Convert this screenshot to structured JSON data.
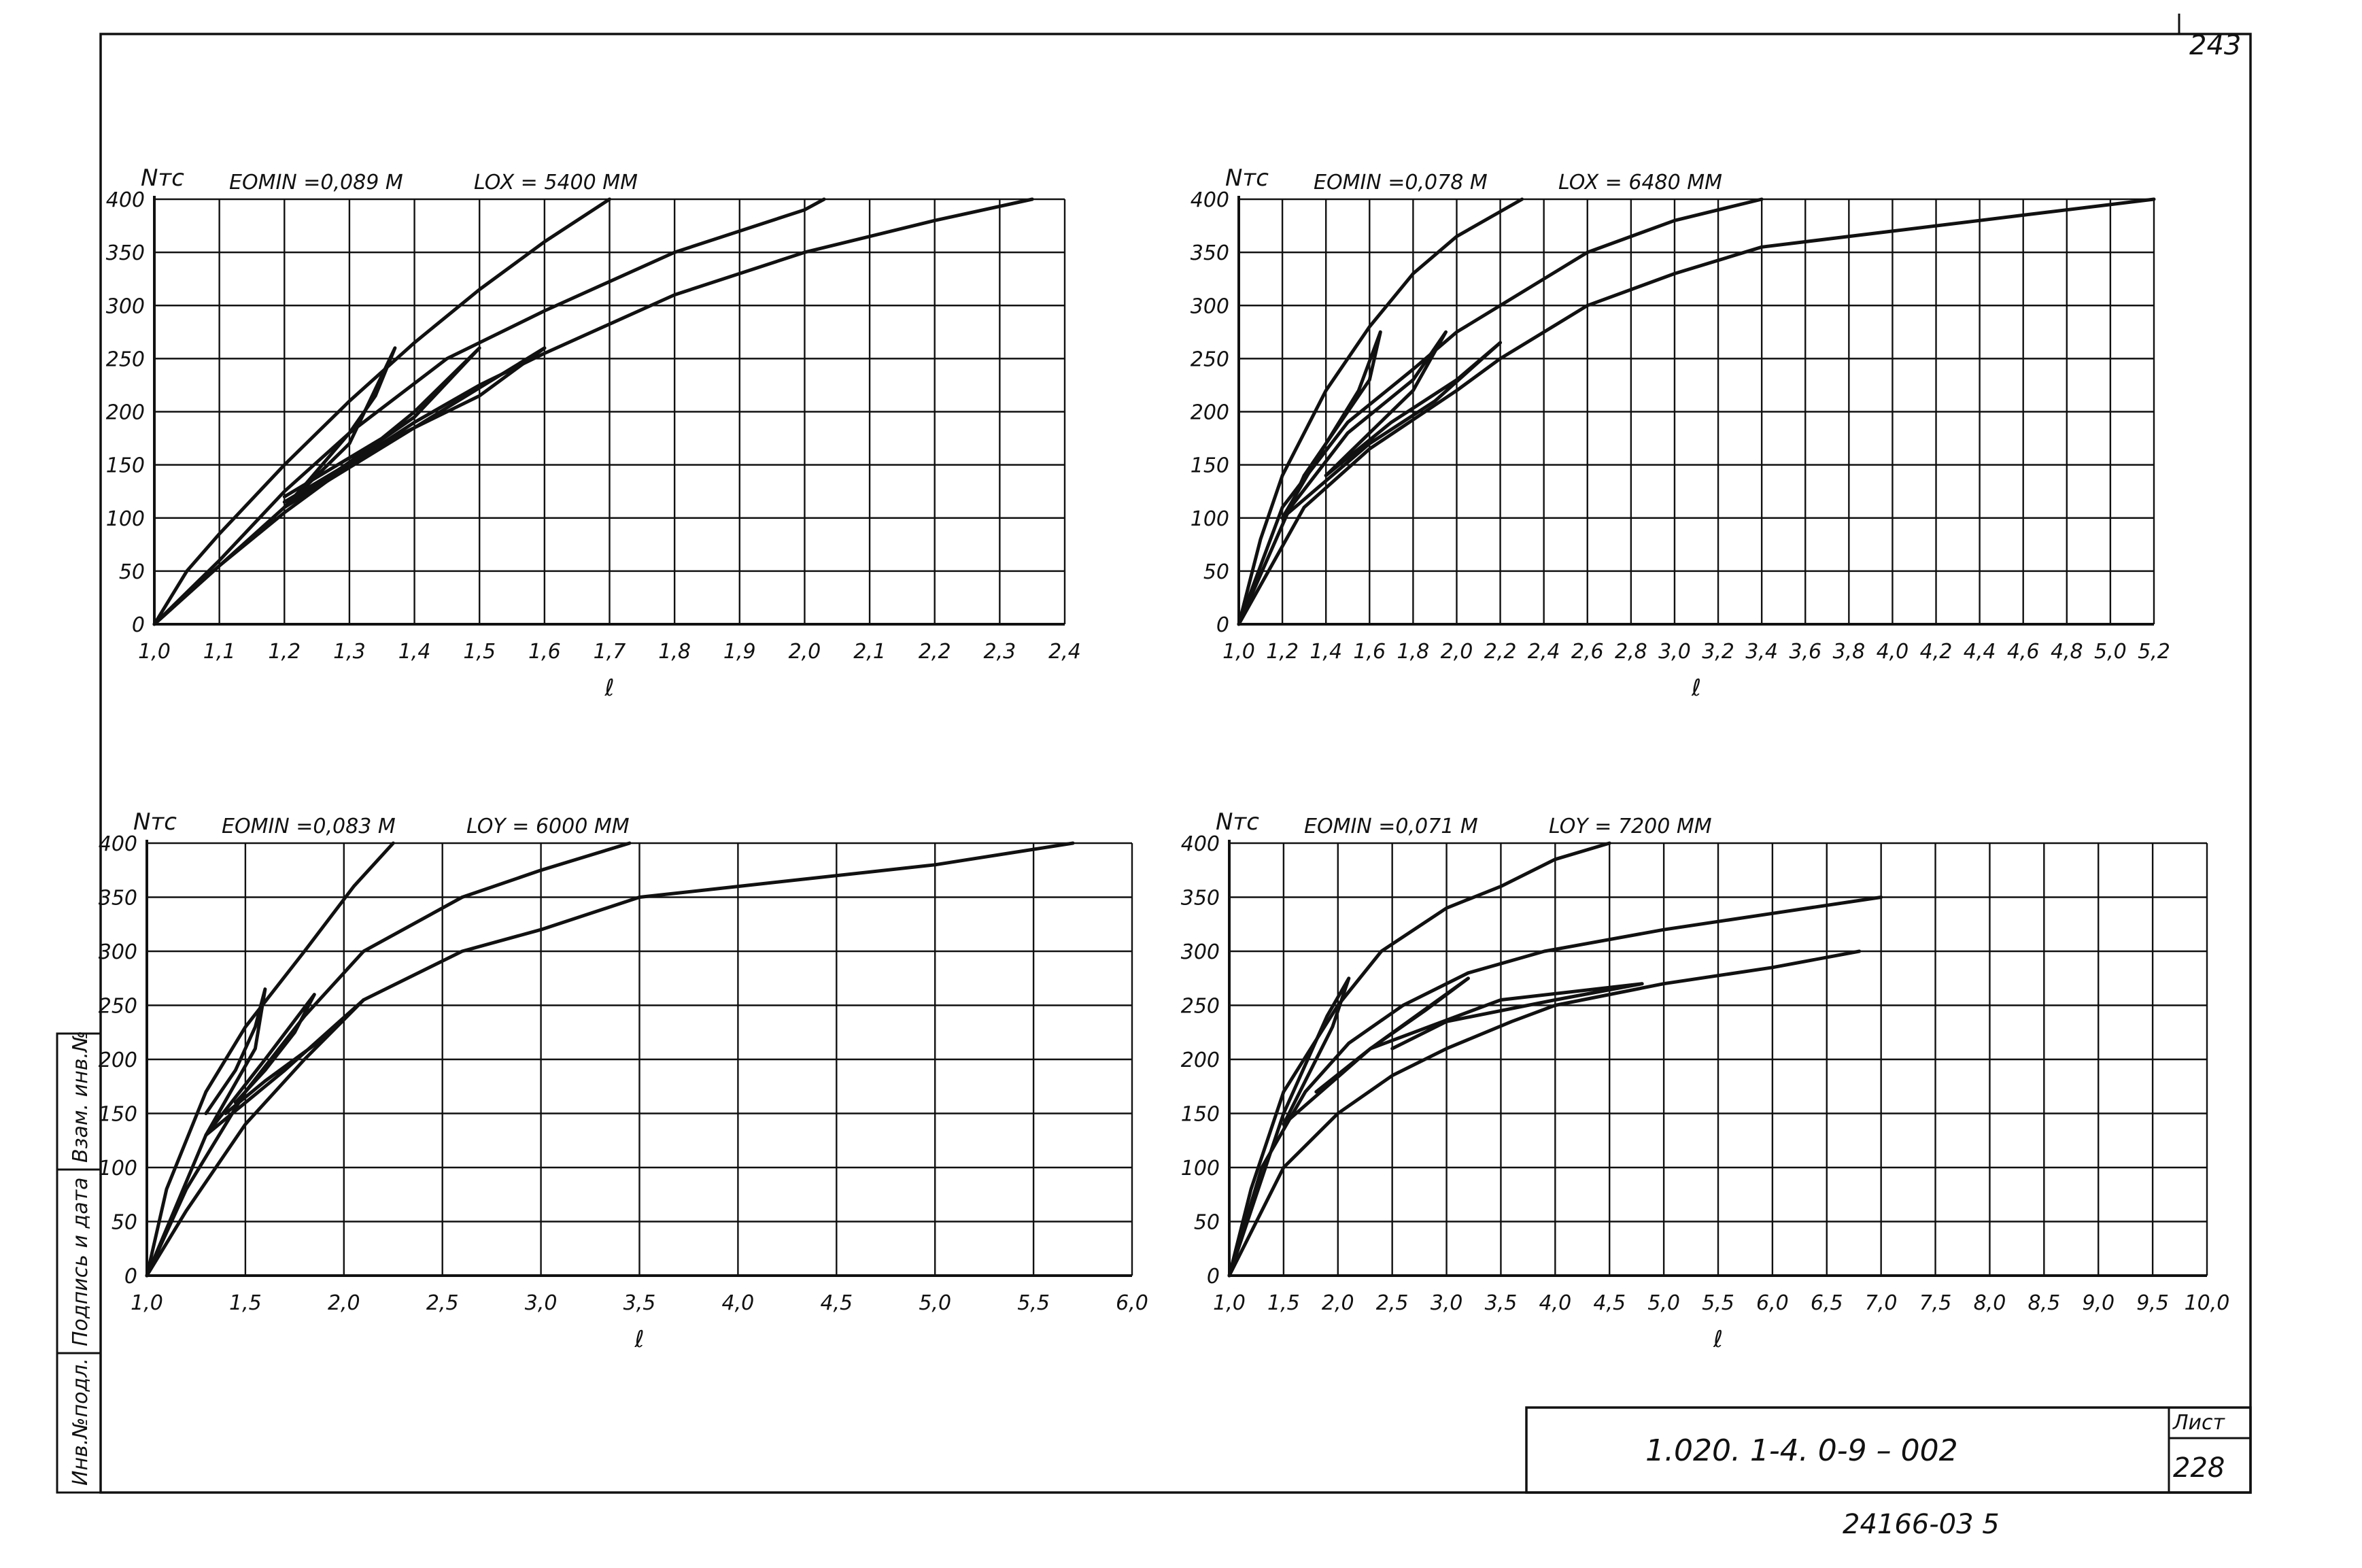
{
  "sheet_corner_number": "243",
  "title_block": {
    "code": "1.020. 1-4.     0-9  –  002",
    "sheet_label": "Лист",
    "sheet_number": "228"
  },
  "bottom_number": "24166-03   5",
  "side_stamp": {
    "col1": "Инв.№подл.",
    "col2": "Подпись и дата",
    "col3": "Взам. инв.№"
  },
  "chart_data": [
    {
      "type": "line",
      "ylabel": "Nтс",
      "xlabel": "ℓ",
      "header_left": "EOMIN =0,089 M",
      "header_right": "LOX = 5400 MM",
      "xlim": [
        1.0,
        2.4
      ],
      "ylim": [
        0,
        400
      ],
      "x_ticks": [
        1.0,
        1.1,
        1.2,
        1.3,
        1.4,
        1.5,
        1.6,
        1.7,
        1.8,
        1.9,
        2.0,
        2.1,
        2.2,
        2.3,
        2.4
      ],
      "x_tick_labels": [
        "1,0",
        "1,1",
        "1,2",
        "1,3",
        "1,4",
        "1,5",
        "1,6",
        "1,7",
        "1,8",
        "1,9",
        "2,0",
        "2,1",
        "2,2",
        "2,3",
        "2,4"
      ],
      "y_ticks": [
        0,
        50,
        100,
        150,
        200,
        250,
        300,
        350,
        400
      ],
      "y_tick_labels": [
        "0",
        "50",
        "100",
        "150",
        "200",
        "250",
        "300",
        "350",
        "400"
      ],
      "series": [
        {
          "values": [
            [
              1.0,
              0
            ],
            [
              1.05,
              50
            ],
            [
              1.1,
              85
            ],
            [
              1.2,
              150
            ],
            [
              1.3,
              210
            ],
            [
              1.4,
              265
            ],
            [
              1.5,
              315
            ],
            [
              1.6,
              360
            ],
            [
              1.7,
              400
            ]
          ]
        },
        {
          "values": [
            [
              1.0,
              0
            ],
            [
              1.1,
              60
            ],
            [
              1.2,
              125
            ],
            [
              1.3,
              180
            ],
            [
              1.45,
              250
            ],
            [
              1.6,
              295
            ],
            [
              1.8,
              350
            ],
            [
              2.0,
              390
            ],
            [
              2.03,
              400
            ]
          ]
        },
        {
          "values": [
            [
              1.0,
              0
            ],
            [
              1.1,
              55
            ],
            [
              1.2,
              105
            ],
            [
              1.3,
              150
            ],
            [
              1.4,
              190
            ],
            [
              1.5,
              225
            ],
            [
              1.6,
              255
            ],
            [
              1.8,
              310
            ],
            [
              2.0,
              350
            ],
            [
              2.2,
              380
            ],
            [
              2.35,
              400
            ]
          ]
        },
        {
          "values": [
            [
              1.0,
              0
            ],
            [
              1.2,
              110
            ],
            [
              1.3,
              170
            ],
            [
              1.37,
              260
            ],
            [
              1.34,
              215
            ],
            [
              1.3,
              180
            ],
            [
              1.23,
              130
            ],
            [
              1.2,
              110
            ]
          ]
        },
        {
          "values": [
            [
              1.2,
              110
            ],
            [
              1.4,
              195
            ],
            [
              1.5,
              260
            ],
            [
              1.45,
              230
            ],
            [
              1.4,
              200
            ],
            [
              1.35,
              175
            ],
            [
              1.2,
              120
            ]
          ]
        },
        {
          "values": [
            [
              1.2,
              110
            ],
            [
              1.4,
              185
            ],
            [
              1.6,
              260
            ],
            [
              1.5,
              215
            ],
            [
              1.35,
              170
            ],
            [
              1.2,
              115
            ]
          ]
        }
      ]
    },
    {
      "type": "line",
      "ylabel": "Nтс",
      "xlabel": "ℓ",
      "header_left": "EOMIN =0,078 M",
      "header_right": "LOX = 6480 MM",
      "xlim": [
        1.0,
        5.2
      ],
      "ylim": [
        0,
        400
      ],
      "x_ticks": [
        1.0,
        1.2,
        1.4,
        1.6,
        1.8,
        2.0,
        2.2,
        2.4,
        2.6,
        2.8,
        3.0,
        3.2,
        3.4,
        3.6,
        3.8,
        4.0,
        4.2,
        4.4,
        4.6,
        4.8,
        5.0,
        5.2
      ],
      "x_tick_labels": [
        "1,0",
        "1,2",
        "1,4",
        "1,6",
        "1,8",
        "2,0",
        "2,2",
        "2,4",
        "2,6",
        "2,8",
        "3,0",
        "3,2",
        "3,4",
        "3,6",
        "3,8",
        "4,0",
        "4,2",
        "4,4",
        "4,6",
        "4,8",
        "5,0",
        "5,2"
      ],
      "y_ticks": [
        0,
        50,
        100,
        150,
        200,
        250,
        300,
        350,
        400
      ],
      "y_tick_labels": [
        "0",
        "50",
        "100",
        "150",
        "200",
        "250",
        "300",
        "350",
        "400"
      ],
      "series": [
        {
          "values": [
            [
              1.0,
              0
            ],
            [
              1.1,
              80
            ],
            [
              1.2,
              140
            ],
            [
              1.4,
              220
            ],
            [
              1.6,
              280
            ],
            [
              1.8,
              330
            ],
            [
              2.0,
              365
            ],
            [
              2.3,
              400
            ]
          ]
        },
        {
          "values": [
            [
              1.0,
              0
            ],
            [
              1.2,
              110
            ],
            [
              1.5,
              190
            ],
            [
              1.8,
              240
            ],
            [
              2.0,
              275
            ],
            [
              2.2,
              300
            ],
            [
              2.6,
              350
            ],
            [
              3.0,
              380
            ],
            [
              3.4,
              400
            ]
          ]
        },
        {
          "values": [
            [
              1.0,
              0
            ],
            [
              1.3,
              110
            ],
            [
              1.6,
              165
            ],
            [
              2.0,
              220
            ],
            [
              2.2,
              250
            ],
            [
              2.6,
              300
            ],
            [
              3.0,
              330
            ],
            [
              3.4,
              355
            ],
            [
              4.0,
              370
            ],
            [
              4.6,
              385
            ],
            [
              5.2,
              400
            ]
          ]
        },
        {
          "values": [
            [
              1.0,
              0
            ],
            [
              1.3,
              140
            ],
            [
              1.6,
              230
            ],
            [
              1.65,
              275
            ],
            [
              1.55,
              220
            ],
            [
              1.4,
              170
            ],
            [
              1.2,
              100
            ]
          ]
        },
        {
          "values": [
            [
              1.2,
              100
            ],
            [
              1.5,
              180
            ],
            [
              1.8,
              230
            ],
            [
              1.95,
              275
            ],
            [
              1.8,
              220
            ],
            [
              1.6,
              180
            ],
            [
              1.4,
              140
            ]
          ]
        },
        {
          "values": [
            [
              1.2,
              100
            ],
            [
              1.6,
              170
            ],
            [
              1.9,
              210
            ],
            [
              2.2,
              265
            ],
            [
              2.0,
              230
            ],
            [
              1.7,
              190
            ],
            [
              1.4,
              140
            ]
          ]
        }
      ]
    },
    {
      "type": "line",
      "ylabel": "Nтс",
      "xlabel": "ℓ",
      "header_left": "EOMIN =0,083 M",
      "header_right": "LOY = 6000 MM",
      "xlim": [
        1.0,
        6.0
      ],
      "ylim": [
        0,
        400
      ],
      "x_ticks": [
        1.0,
        1.5,
        2.0,
        2.5,
        3.0,
        3.5,
        4.0,
        4.5,
        5.0,
        5.5,
        6.0
      ],
      "x_tick_labels": [
        "1,0",
        "1,5",
        "2,0",
        "2,5",
        "3,0",
        "3,5",
        "4,0",
        "4,5",
        "5,0",
        "5,5",
        "6,0"
      ],
      "y_ticks": [
        0,
        50,
        100,
        150,
        200,
        250,
        300,
        350,
        400
      ],
      "y_tick_labels": [
        "0",
        "50",
        "100",
        "150",
        "200",
        "250",
        "300",
        "350",
        "400"
      ],
      "series": [
        {
          "values": [
            [
              1.0,
              0
            ],
            [
              1.1,
              80
            ],
            [
              1.3,
              170
            ],
            [
              1.5,
              230
            ],
            [
              1.8,
              300
            ],
            [
              2.05,
              360
            ],
            [
              2.25,
              400
            ]
          ]
        },
        {
          "values": [
            [
              1.0,
              0
            ],
            [
              1.2,
              80
            ],
            [
              1.5,
              170
            ],
            [
              1.8,
              240
            ],
            [
              2.1,
              300
            ],
            [
              2.6,
              350
            ],
            [
              3.0,
              375
            ],
            [
              3.45,
              400
            ]
          ]
        },
        {
          "values": [
            [
              1.0,
              0
            ],
            [
              1.2,
              60
            ],
            [
              1.5,
              140
            ],
            [
              1.8,
              200
            ],
            [
              2.1,
              255
            ],
            [
              2.6,
              300
            ],
            [
              3.0,
              320
            ],
            [
              3.5,
              350
            ],
            [
              4.0,
              360
            ],
            [
              5.0,
              380
            ],
            [
              5.7,
              400
            ]
          ]
        },
        {
          "values": [
            [
              1.0,
              0
            ],
            [
              1.3,
              130
            ],
            [
              1.55,
              210
            ],
            [
              1.6,
              265
            ],
            [
              1.55,
              230
            ],
            [
              1.45,
              190
            ],
            [
              1.3,
              150
            ]
          ]
        },
        {
          "values": [
            [
              1.3,
              130
            ],
            [
              1.6,
              200
            ],
            [
              1.85,
              260
            ],
            [
              1.75,
              225
            ],
            [
              1.6,
              190
            ],
            [
              1.45,
              160
            ]
          ]
        },
        {
          "values": [
            [
              1.3,
              130
            ],
            [
              1.7,
              190
            ],
            [
              2.1,
              255
            ],
            [
              1.9,
              220
            ],
            [
              1.6,
              180
            ],
            [
              1.4,
              150
            ]
          ]
        }
      ]
    },
    {
      "type": "line",
      "ylabel": "Nтс",
      "xlabel": "ℓ",
      "header_left": "EOMIN =0,071 M",
      "header_right": "LOY = 7200 MM",
      "xlim": [
        1.0,
        10.0
      ],
      "ylim": [
        0,
        400
      ],
      "x_ticks": [
        1.0,
        1.5,
        2.0,
        2.5,
        3.0,
        3.5,
        4.0,
        4.5,
        5.0,
        5.5,
        6.0,
        6.5,
        7.0,
        7.5,
        8.0,
        8.5,
        9.0,
        9.5,
        10.0
      ],
      "x_tick_labels": [
        "1,0",
        "1,5",
        "2,0",
        "2,5",
        "3,0",
        "3,5",
        "4,0",
        "4,5",
        "5,0",
        "5,5",
        "6,0",
        "6,5",
        "7,0",
        "7,5",
        "8,0",
        "8,5",
        "9,0",
        "9,5",
        "10,0"
      ],
      "y_ticks": [
        0,
        50,
        100,
        150,
        200,
        250,
        300,
        350,
        400
      ],
      "y_tick_labels": [
        "0",
        "50",
        "100",
        "150",
        "200",
        "250",
        "300",
        "350",
        "400"
      ],
      "series": [
        {
          "values": [
            [
              1.0,
              0
            ],
            [
              1.2,
              80
            ],
            [
              1.5,
              170
            ],
            [
              2.0,
              250
            ],
            [
              2.4,
              300
            ],
            [
              3.0,
              340
            ],
            [
              3.5,
              360
            ],
            [
              4.0,
              385
            ],
            [
              4.5,
              400
            ]
          ]
        },
        {
          "values": [
            [
              1.0,
              0
            ],
            [
              1.3,
              100
            ],
            [
              1.7,
              170
            ],
            [
              2.1,
              215
            ],
            [
              2.6,
              250
            ],
            [
              3.2,
              280
            ],
            [
              3.9,
              300
            ],
            [
              5.0,
              320
            ],
            [
              6.0,
              335
            ],
            [
              7.0,
              350
            ]
          ]
        },
        {
          "values": [
            [
              1.0,
              0
            ],
            [
              1.5,
              100
            ],
            [
              2.0,
              150
            ],
            [
              2.5,
              185
            ],
            [
              3.0,
              210
            ],
            [
              3.6,
              235
            ],
            [
              4.0,
              250
            ],
            [
              5.0,
              270
            ],
            [
              6.0,
              285
            ],
            [
              6.8,
              300
            ]
          ]
        },
        {
          "values": [
            [
              1.0,
              0
            ],
            [
              1.5,
              150
            ],
            [
              1.9,
              240
            ],
            [
              2.1,
              275
            ],
            [
              1.95,
              230
            ],
            [
              1.7,
              180
            ],
            [
              1.5,
              140
            ]
          ]
        },
        {
          "values": [
            [
              1.5,
              140
            ],
            [
              2.3,
              210
            ],
            [
              3.2,
              275
            ],
            [
              2.8,
              245
            ],
            [
              2.3,
              210
            ],
            [
              1.8,
              170
            ]
          ]
        },
        {
          "values": [
            [
              2.3,
              210
            ],
            [
              3.5,
              255
            ],
            [
              4.8,
              270
            ],
            [
              4.0,
              255
            ],
            [
              3.0,
              235
            ],
            [
              2.5,
              210
            ]
          ]
        }
      ]
    }
  ]
}
